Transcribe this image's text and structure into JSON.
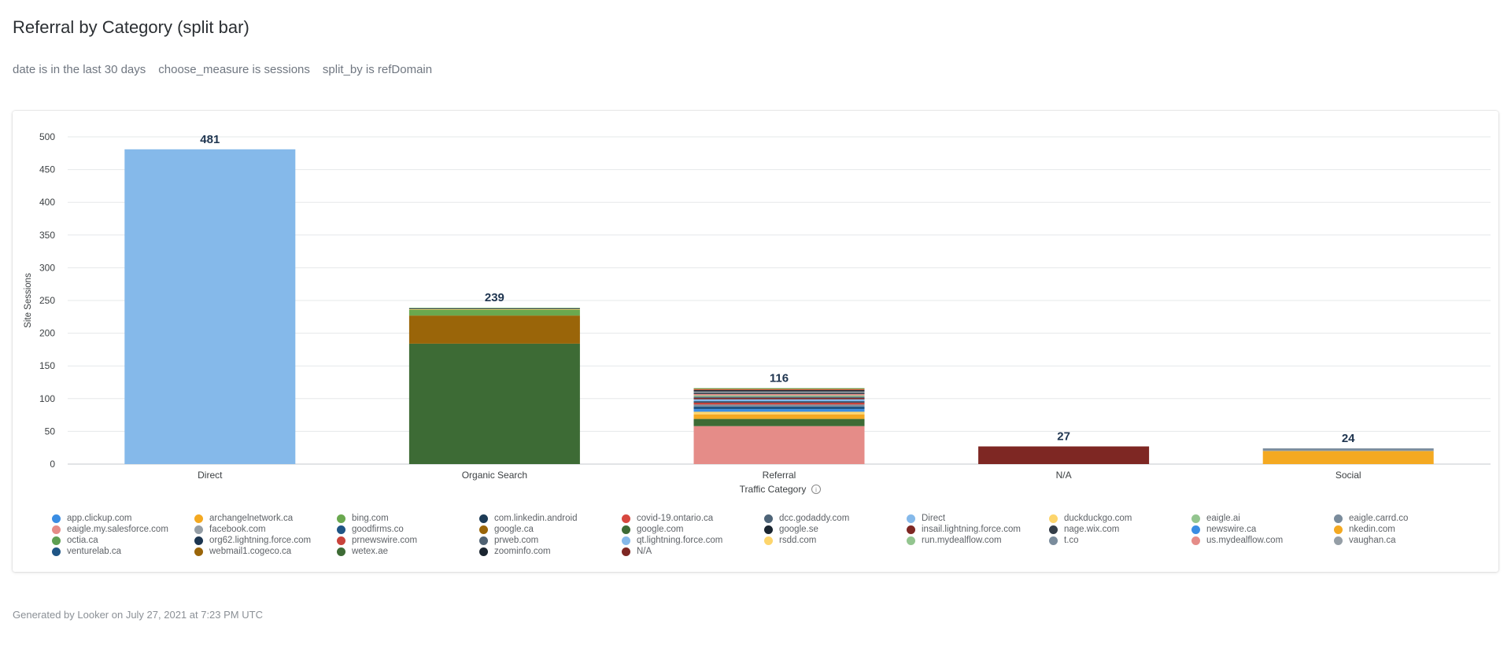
{
  "page": {
    "title": "Referral by Category (split bar)",
    "filters": [
      "date is in the last 30 days",
      "choose_measure is sessions",
      "split_by is refDomain"
    ],
    "footer": "Generated by Looker on July 27, 2021 at 7:23 PM UTC"
  },
  "chart_data": {
    "type": "bar",
    "stacked": true,
    "xlabel": "Traffic Category",
    "ylabel": "Site Sessions",
    "ylim": [
      0,
      500
    ],
    "yticks": [
      0,
      50,
      100,
      150,
      200,
      250,
      300,
      350,
      400,
      450,
      500
    ],
    "categories": [
      "Direct",
      "Organic Search",
      "Referral",
      "N/A",
      "Social"
    ],
    "totals": [
      481,
      239,
      116,
      27,
      24
    ],
    "legend": [
      {
        "name": "app.clickup.com",
        "color": "#3a8de3"
      },
      {
        "name": "archangelnetwork.ca",
        "color": "#f4a921"
      },
      {
        "name": "bing.com",
        "color": "#6aa84f"
      },
      {
        "name": "com.linkedin.android",
        "color": "#1d3b56"
      },
      {
        "name": "covid-19.ontario.ca",
        "color": "#d7473f"
      },
      {
        "name": "dcc.godaddy.com",
        "color": "#4e6478"
      },
      {
        "name": "Direct",
        "color": "#85b9ea"
      },
      {
        "name": "duckduckgo.com",
        "color": "#fdd56c"
      },
      {
        "name": "eaigle.ai",
        "color": "#93c58f"
      },
      {
        "name": "eaigle.carrd.co",
        "color": "#7a8c9c"
      },
      {
        "name": "eaigle.my.salesforce.com",
        "color": "#e58c88"
      },
      {
        "name": "facebook.com",
        "color": "#959ea6"
      },
      {
        "name": "goodfirms.co",
        "color": "#1f5585"
      },
      {
        "name": "google.ca",
        "color": "#9a6509"
      },
      {
        "name": "google.com",
        "color": "#3d6b35"
      },
      {
        "name": "google.se",
        "color": "#1a2530"
      },
      {
        "name": "insail.lightning.force.com",
        "color": "#7e2723"
      },
      {
        "name": "nage.wix.com",
        "color": "#343e48"
      },
      {
        "name": "newswire.ca",
        "color": "#3a8de3"
      },
      {
        "name": "nkedin.com",
        "color": "#f4a921"
      },
      {
        "name": "octia.ca",
        "color": "#5e9f52"
      },
      {
        "name": "org62.lightning.force.com",
        "color": "#1c3550"
      },
      {
        "name": "prnewswire.com",
        "color": "#c9433b"
      },
      {
        "name": "prweb.com",
        "color": "#4f6273"
      },
      {
        "name": "qt.lightning.force.com",
        "color": "#85b9ea"
      },
      {
        "name": "rsdd.com",
        "color": "#fdd56c"
      },
      {
        "name": "run.mydealflow.com",
        "color": "#93c58f"
      },
      {
        "name": "t.co",
        "color": "#7a8c9c"
      },
      {
        "name": "us.mydealflow.com",
        "color": "#e58c88"
      },
      {
        "name": "vaughan.ca",
        "color": "#959ea6"
      },
      {
        "name": "venturelab.ca",
        "color": "#1f5585"
      },
      {
        "name": "webmail1.cogeco.ca",
        "color": "#9a6509"
      },
      {
        "name": "wetex.ae",
        "color": "#3d6b35"
      },
      {
        "name": "zoominfo.com",
        "color": "#1a2530"
      },
      {
        "name": "N/A",
        "color": "#7e2723"
      }
    ],
    "stacks": [
      [
        {
          "name": "Direct",
          "value": 481,
          "color": "#85b9ea"
        }
      ],
      [
        {
          "name": "google.com",
          "value": 184,
          "color": "#3d6b35"
        },
        {
          "name": "google.ca",
          "value": 43,
          "color": "#9a6509"
        },
        {
          "name": "bing.com",
          "value": 9,
          "color": "#6aa84f"
        },
        {
          "name": "duckduckgo.com",
          "value": 1,
          "color": "#fdd56c"
        },
        {
          "name": "google.se",
          "value": 1,
          "color": "#1a2530"
        },
        {
          "name": "eaigle.ai",
          "value": 1,
          "color": "#93c58f"
        }
      ],
      [
        {
          "name": "eaigle.my.salesforce.com",
          "value": 58,
          "color": "#e58c88"
        },
        {
          "name": "wetex.ae",
          "value": 11,
          "color": "#3d6b35"
        },
        {
          "name": "archangelnetwork.ca",
          "value": 7,
          "color": "#f4a921"
        },
        {
          "name": "duckduckgo.com",
          "value": 4,
          "color": "#fdd56c"
        },
        {
          "name": "app.clickup.com",
          "value": 4,
          "color": "#3a8de3"
        },
        {
          "name": "goodfirms.co",
          "value": 4,
          "color": "#1f5585"
        },
        {
          "name": "eaigle.carrd.co",
          "value": 3,
          "color": "#7a8c9c"
        },
        {
          "name": "prnewswire.com",
          "value": 3,
          "color": "#c9433b"
        },
        {
          "name": "com.linkedin.android",
          "value": 2,
          "color": "#1d3b56"
        },
        {
          "name": "qt.lightning.force.com",
          "value": 3,
          "color": "#85b9ea"
        },
        {
          "name": "insail.lightning.force.com",
          "value": 2,
          "color": "#7e2723"
        },
        {
          "name": "prweb.com",
          "value": 2,
          "color": "#4f6273"
        },
        {
          "name": "run.mydealflow.com",
          "value": 2,
          "color": "#93c58f"
        },
        {
          "name": "us.mydealflow.com",
          "value": 2,
          "color": "#e58c88"
        },
        {
          "name": "nage.wix.com",
          "value": 2,
          "color": "#343e48"
        },
        {
          "name": "vaughan.ca",
          "value": 2,
          "color": "#959ea6"
        },
        {
          "name": "zoominfo.com",
          "value": 2,
          "color": "#1a2530"
        },
        {
          "name": "covid-19.ontario.ca",
          "value": 1,
          "color": "#d7473f"
        },
        {
          "name": "webmail1.cogeco.ca",
          "value": 1,
          "color": "#9a6509"
        },
        {
          "name": "octia.ca",
          "value": 1,
          "color": "#5e9f52"
        }
      ],
      [
        {
          "name": "N/A",
          "value": 27,
          "color": "#7e2723"
        }
      ],
      [
        {
          "name": "nkedin.com",
          "value": 20,
          "color": "#f4a921"
        },
        {
          "name": "facebook.com",
          "value": 1,
          "color": "#959ea6"
        },
        {
          "name": "t.co",
          "value": 3,
          "color": "#7a8c9c"
        }
      ]
    ]
  }
}
